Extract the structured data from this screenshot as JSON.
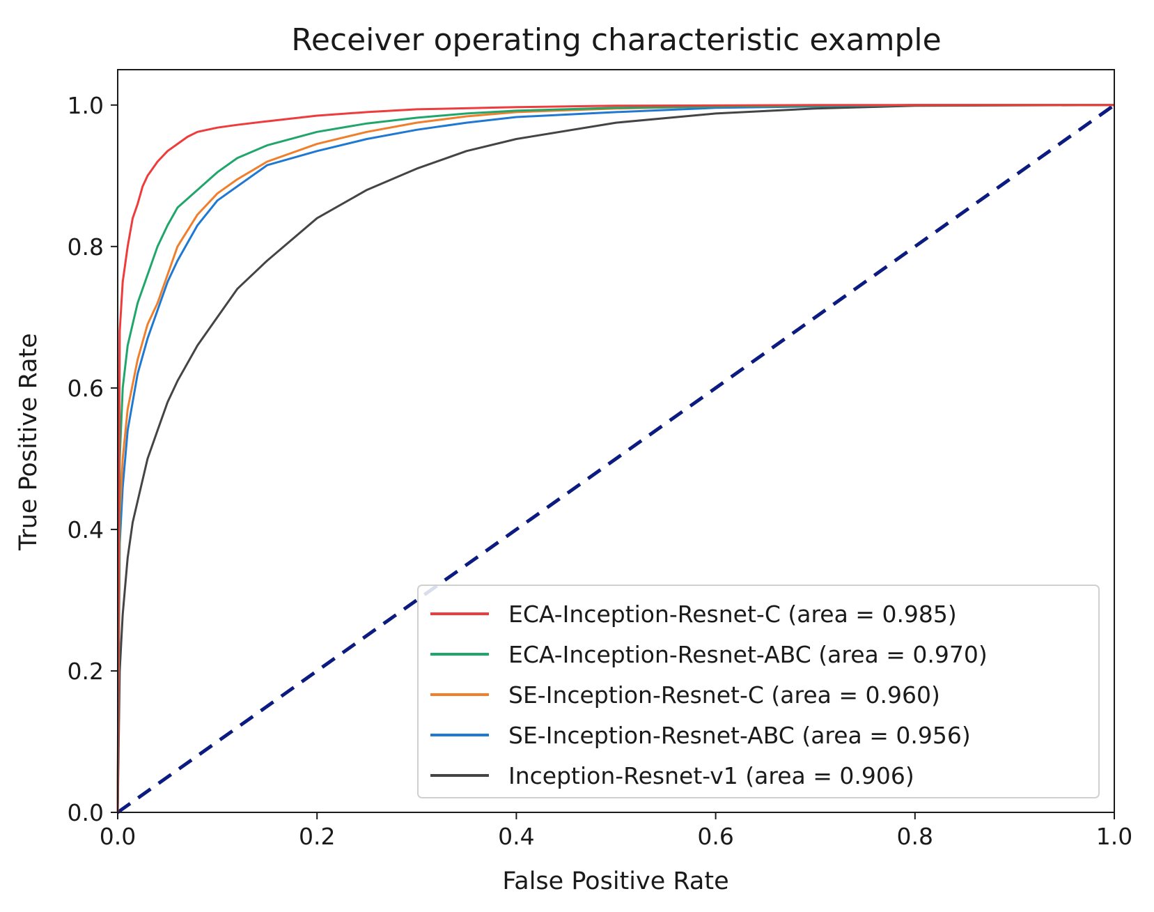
{
  "chart_data": {
    "type": "line",
    "title": "Receiver operating characteristic example",
    "xlabel": "False Positive Rate",
    "ylabel": "True Positive Rate",
    "xlim": [
      0.0,
      1.0
    ],
    "ylim": [
      0.0,
      1.05
    ],
    "xticks": [
      "0.0",
      "0.2",
      "0.4",
      "0.6",
      "0.8",
      "1.0"
    ],
    "yticks": [
      "0.0",
      "0.2",
      "0.4",
      "0.6",
      "0.8",
      "1.0"
    ],
    "grid": false,
    "legend_position": "lower-right",
    "series": [
      {
        "name": "ECA-Inception-Resnet-C (area = 0.985)",
        "color": "#ee3b3b",
        "x": [
          0,
          0.002,
          0.005,
          0.01,
          0.015,
          0.02,
          0.025,
          0.03,
          0.04,
          0.05,
          0.06,
          0.07,
          0.08,
          0.1,
          0.12,
          0.15,
          0.2,
          0.25,
          0.3,
          0.4,
          0.5,
          0.7,
          1.0
        ],
        "y": [
          0,
          0.68,
          0.75,
          0.8,
          0.84,
          0.86,
          0.885,
          0.9,
          0.92,
          0.935,
          0.945,
          0.955,
          0.962,
          0.968,
          0.972,
          0.977,
          0.985,
          0.99,
          0.994,
          0.997,
          0.999,
          1.0,
          1.0
        ]
      },
      {
        "name": "ECA-Inception-Resnet-ABC (area = 0.970)",
        "color": "#20a66a",
        "x": [
          0,
          0.002,
          0.005,
          0.01,
          0.02,
          0.03,
          0.04,
          0.05,
          0.06,
          0.08,
          0.1,
          0.12,
          0.15,
          0.2,
          0.25,
          0.3,
          0.35,
          0.4,
          0.5,
          0.6,
          0.8,
          1.0
        ],
        "y": [
          0,
          0.5,
          0.6,
          0.66,
          0.72,
          0.76,
          0.8,
          0.83,
          0.855,
          0.88,
          0.905,
          0.925,
          0.943,
          0.962,
          0.974,
          0.982,
          0.988,
          0.992,
          0.996,
          0.998,
          1.0,
          1.0
        ]
      },
      {
        "name": "SE-Inception-Resnet-C (area = 0.960)",
        "color": "#f07f2d",
        "x": [
          0,
          0.002,
          0.005,
          0.01,
          0.02,
          0.03,
          0.04,
          0.05,
          0.06,
          0.08,
          0.1,
          0.12,
          0.15,
          0.2,
          0.25,
          0.3,
          0.35,
          0.4,
          0.5,
          0.6,
          0.8,
          1.0
        ],
        "y": [
          0,
          0.42,
          0.5,
          0.57,
          0.64,
          0.69,
          0.72,
          0.76,
          0.8,
          0.845,
          0.875,
          0.895,
          0.92,
          0.945,
          0.962,
          0.975,
          0.984,
          0.99,
          0.995,
          0.998,
          1.0,
          1.0
        ]
      },
      {
        "name": "SE-Inception-Resnet-ABC (area = 0.956)",
        "color": "#1f78d1",
        "x": [
          0,
          0.002,
          0.005,
          0.01,
          0.02,
          0.03,
          0.04,
          0.05,
          0.06,
          0.08,
          0.1,
          0.12,
          0.15,
          0.2,
          0.25,
          0.3,
          0.35,
          0.4,
          0.5,
          0.6,
          0.8,
          1.0
        ],
        "y": [
          0,
          0.38,
          0.46,
          0.54,
          0.62,
          0.67,
          0.71,
          0.75,
          0.78,
          0.83,
          0.865,
          0.885,
          0.915,
          0.935,
          0.952,
          0.965,
          0.975,
          0.983,
          0.99,
          0.996,
          1.0,
          1.0
        ]
      },
      {
        "name": "Inception-Resnet-v1 (area = 0.906)",
        "color": "#444444",
        "x": [
          0,
          0.002,
          0.005,
          0.01,
          0.015,
          0.02,
          0.03,
          0.04,
          0.05,
          0.06,
          0.08,
          0.1,
          0.12,
          0.15,
          0.2,
          0.25,
          0.3,
          0.35,
          0.4,
          0.5,
          0.6,
          0.7,
          0.8,
          1.0
        ],
        "y": [
          0,
          0.2,
          0.28,
          0.36,
          0.41,
          0.44,
          0.5,
          0.54,
          0.58,
          0.61,
          0.66,
          0.7,
          0.74,
          0.78,
          0.84,
          0.88,
          0.91,
          0.935,
          0.952,
          0.975,
          0.988,
          0.995,
          0.999,
          1.0
        ]
      },
      {
        "name": "",
        "color": "#0b1b80",
        "dashed": true,
        "x": [
          0,
          1
        ],
        "y": [
          0,
          1
        ]
      }
    ]
  }
}
